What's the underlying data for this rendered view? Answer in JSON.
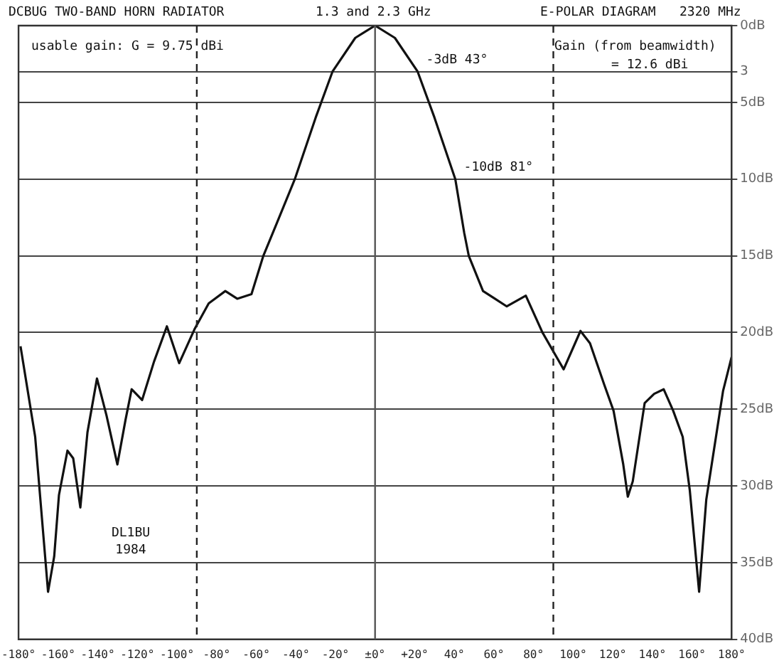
{
  "chart_data": {
    "type": "line",
    "title": "DCBUG TWO-BAND HORN RADIATOR",
    "annotations": [
      "1.3 and 2.3 GHz",
      "E-POLAR DIAGRAM",
      "2320 MHz",
      "usable gain: G = 9.75 dBi",
      "Gain (from beamwidth)",
      "= 12.6 dBi",
      {
        "text": "-3dB 43°",
        "x": 21.5,
        "y": 3
      },
      {
        "text": "-10dB 81°",
        "x": 40.5,
        "y": 10
      },
      "DL1BU",
      "1984"
    ],
    "x": [
      -179,
      -171.6,
      -165.1,
      -162,
      -159.6,
      -155.3,
      -152.4,
      -148.8,
      -145.2,
      -140.4,
      -135.6,
      -130.1,
      -126,
      -122.9,
      -117.6,
      -111.6,
      -105.1,
      -98.9,
      -91.2,
      -84,
      -75.6,
      -69.6,
      -62.4,
      -56.4,
      -50,
      -40.5,
      -30,
      -21.5,
      -10,
      0,
      10,
      21.5,
      30,
      40.5,
      45,
      47.3,
      54.5,
      60.5,
      66.5,
      76.1,
      84.5,
      95.2,
      103.7,
      108.5,
      115.7,
      120.4,
      125.3,
      127.6,
      130.1,
      136.1,
      140.9,
      145.7,
      150.5,
      155.3,
      158.9,
      163.6,
      167.2,
      175.7,
      180
    ],
    "series": [
      {
        "color": "#111111",
        "values": [
          20.9,
          26.8,
          36.9,
          34.6,
          30.6,
          27.7,
          28.2,
          31.4,
          26.5,
          23.0,
          25.4,
          28.6,
          25.7,
          23.7,
          24.4,
          21.9,
          19.6,
          22.0,
          19.8,
          18.1,
          17.3,
          17.8,
          17.5,
          15.0,
          13,
          10,
          6,
          3,
          0.8,
          0,
          0.8,
          3,
          6,
          10,
          13.5,
          15,
          17.3,
          17.8,
          18.3,
          17.6,
          20,
          22.4,
          19.9,
          20.7,
          23.4,
          25.1,
          28.6,
          30.7,
          29.7,
          24.6,
          24.0,
          23.7,
          25.1,
          26.8,
          30.3,
          36.9,
          30.9,
          23.8,
          21.6
        ]
      }
    ],
    "xlim": [
      -180,
      180
    ],
    "xticks": [
      {
        "value": -180,
        "label": "-180°"
      },
      {
        "value": -160,
        "label": "-160°"
      },
      {
        "value": -140,
        "label": "-140°"
      },
      {
        "value": -120,
        "label": "-120°"
      },
      {
        "value": -100,
        "label": "-100°"
      },
      {
        "value": -80,
        "label": "-80°"
      },
      {
        "value": -60,
        "label": "-60°"
      },
      {
        "value": -40,
        "label": "-40°"
      },
      {
        "value": -20,
        "label": "-20°"
      },
      {
        "value": 0,
        "label": "±0°"
      },
      {
        "value": 20,
        "label": "+20°"
      },
      {
        "value": 40,
        "label": "40°"
      },
      {
        "value": 60,
        "label": "60°"
      },
      {
        "value": 80,
        "label": "80°"
      },
      {
        "value": 100,
        "label": "100°"
      },
      {
        "value": 120,
        "label": "120°"
      },
      {
        "value": 140,
        "label": "140°"
      },
      {
        "value": 160,
        "label": "160°"
      },
      {
        "value": 180,
        "label": "180°"
      }
    ],
    "ylim": [
      40,
      0
    ],
    "yticks": [
      {
        "value": 0,
        "label": "0dB"
      },
      {
        "value": 3,
        "label": "3"
      },
      {
        "value": 5,
        "label": "5dB"
      },
      {
        "value": 10,
        "label": "10dB"
      },
      {
        "value": 15,
        "label": "15dB"
      },
      {
        "value": 20,
        "label": "20dB"
      },
      {
        "value": 25,
        "label": "25dB"
      },
      {
        "value": 30,
        "label": "30dB"
      },
      {
        "value": 35,
        "label": "35dB"
      },
      {
        "value": 40,
        "label": "40dB"
      }
    ],
    "ref_lines": [
      {
        "axis": "x",
        "value": -90,
        "line_style": "dashed",
        "color": "#222222"
      },
      {
        "axis": "x",
        "value": 0,
        "line_style": "solid",
        "color": "#555555"
      },
      {
        "axis": "x",
        "value": 90,
        "line_style": "dashed",
        "color": "#222222"
      }
    ],
    "grid": "y",
    "legend": false,
    "marker": "none",
    "line_style": "solid"
  }
}
